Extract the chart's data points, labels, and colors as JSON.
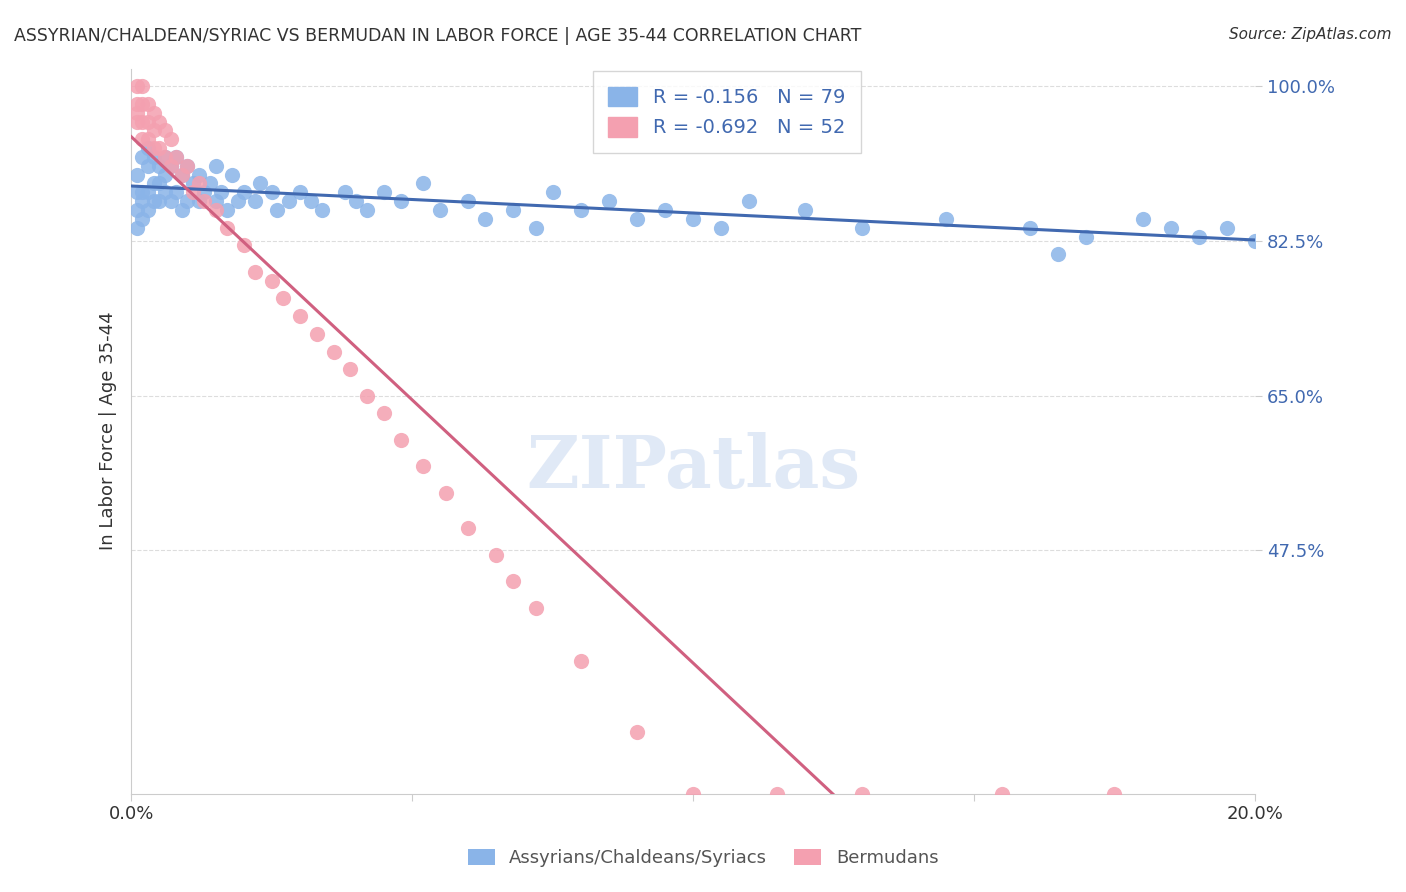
{
  "title": "ASSYRIAN/CHALDEAN/SYRIAC VS BERMUDAN IN LABOR FORCE | AGE 35-44 CORRELATION CHART",
  "source": "Source: ZipAtlas.com",
  "xlabel_bottom": "",
  "ylabel": "In Labor Force | Age 35-44",
  "legend_label1": "Assyrians/Chaldeans/Syriacs",
  "legend_label2": "Bermudans",
  "R1": "-0.156",
  "N1": "79",
  "R2": "-0.692",
  "N2": "52",
  "color1": "#8ab4e8",
  "color2": "#f4a0b0",
  "line_color1": "#4169b0",
  "line_color2": "#d06080",
  "xmin": 0.0,
  "xmax": 0.2,
  "ymin": 0.2,
  "ymax": 1.02,
  "yticks": [
    1.0,
    0.825,
    0.65,
    0.475
  ],
  "ytick_labels": [
    "100.0%",
    "82.5%",
    "65.0%",
    "47.5%"
  ],
  "xticks": [
    0.0,
    0.05,
    0.1,
    0.15,
    0.2
  ],
  "xtick_labels": [
    "0.0%",
    "",
    "",
    "",
    "20.0%"
  ],
  "watermark": "ZIPatlas",
  "blue_scatter_x": [
    0.001,
    0.001,
    0.001,
    0.001,
    0.002,
    0.002,
    0.002,
    0.002,
    0.003,
    0.003,
    0.003,
    0.003,
    0.004,
    0.004,
    0.004,
    0.005,
    0.005,
    0.005,
    0.006,
    0.006,
    0.006,
    0.007,
    0.007,
    0.008,
    0.008,
    0.009,
    0.009,
    0.01,
    0.01,
    0.011,
    0.012,
    0.012,
    0.013,
    0.014,
    0.015,
    0.015,
    0.016,
    0.017,
    0.018,
    0.019,
    0.02,
    0.022,
    0.023,
    0.025,
    0.026,
    0.028,
    0.03,
    0.032,
    0.034,
    0.038,
    0.04,
    0.042,
    0.045,
    0.048,
    0.052,
    0.055,
    0.06,
    0.063,
    0.068,
    0.072,
    0.075,
    0.08,
    0.085,
    0.09,
    0.095,
    0.1,
    0.105,
    0.11,
    0.12,
    0.13,
    0.145,
    0.16,
    0.17,
    0.18,
    0.185,
    0.19,
    0.195,
    0.2,
    0.165
  ],
  "blue_scatter_y": [
    0.9,
    0.88,
    0.86,
    0.84,
    0.92,
    0.88,
    0.87,
    0.85,
    0.93,
    0.91,
    0.88,
    0.86,
    0.92,
    0.89,
    0.87,
    0.91,
    0.89,
    0.87,
    0.92,
    0.9,
    0.88,
    0.91,
    0.87,
    0.92,
    0.88,
    0.9,
    0.86,
    0.91,
    0.87,
    0.89,
    0.9,
    0.87,
    0.88,
    0.89,
    0.91,
    0.87,
    0.88,
    0.86,
    0.9,
    0.87,
    0.88,
    0.87,
    0.89,
    0.88,
    0.86,
    0.87,
    0.88,
    0.87,
    0.86,
    0.88,
    0.87,
    0.86,
    0.88,
    0.87,
    0.89,
    0.86,
    0.87,
    0.85,
    0.86,
    0.84,
    0.88,
    0.86,
    0.87,
    0.85,
    0.86,
    0.85,
    0.84,
    0.87,
    0.86,
    0.84,
    0.85,
    0.84,
    0.83,
    0.85,
    0.84,
    0.83,
    0.84,
    0.825,
    0.81
  ],
  "pink_scatter_x": [
    0.001,
    0.001,
    0.001,
    0.001,
    0.002,
    0.002,
    0.002,
    0.002,
    0.003,
    0.003,
    0.003,
    0.004,
    0.004,
    0.004,
    0.005,
    0.005,
    0.006,
    0.006,
    0.007,
    0.007,
    0.008,
    0.009,
    0.01,
    0.011,
    0.012,
    0.013,
    0.015,
    0.017,
    0.02,
    0.022,
    0.025,
    0.027,
    0.03,
    0.033,
    0.036,
    0.039,
    0.042,
    0.045,
    0.048,
    0.052,
    0.056,
    0.06,
    0.065,
    0.068,
    0.072,
    0.08,
    0.09,
    0.1,
    0.115,
    0.13,
    0.155,
    0.175
  ],
  "pink_scatter_y": [
    1.0,
    0.98,
    0.97,
    0.96,
    1.0,
    0.98,
    0.96,
    0.94,
    0.98,
    0.96,
    0.94,
    0.97,
    0.95,
    0.93,
    0.96,
    0.93,
    0.95,
    0.92,
    0.94,
    0.91,
    0.92,
    0.9,
    0.91,
    0.88,
    0.89,
    0.87,
    0.86,
    0.84,
    0.82,
    0.79,
    0.78,
    0.76,
    0.74,
    0.72,
    0.7,
    0.68,
    0.65,
    0.63,
    0.6,
    0.57,
    0.54,
    0.5,
    0.47,
    0.44,
    0.41,
    0.35,
    0.27,
    0.2,
    0.2,
    0.2,
    0.2,
    0.2
  ]
}
